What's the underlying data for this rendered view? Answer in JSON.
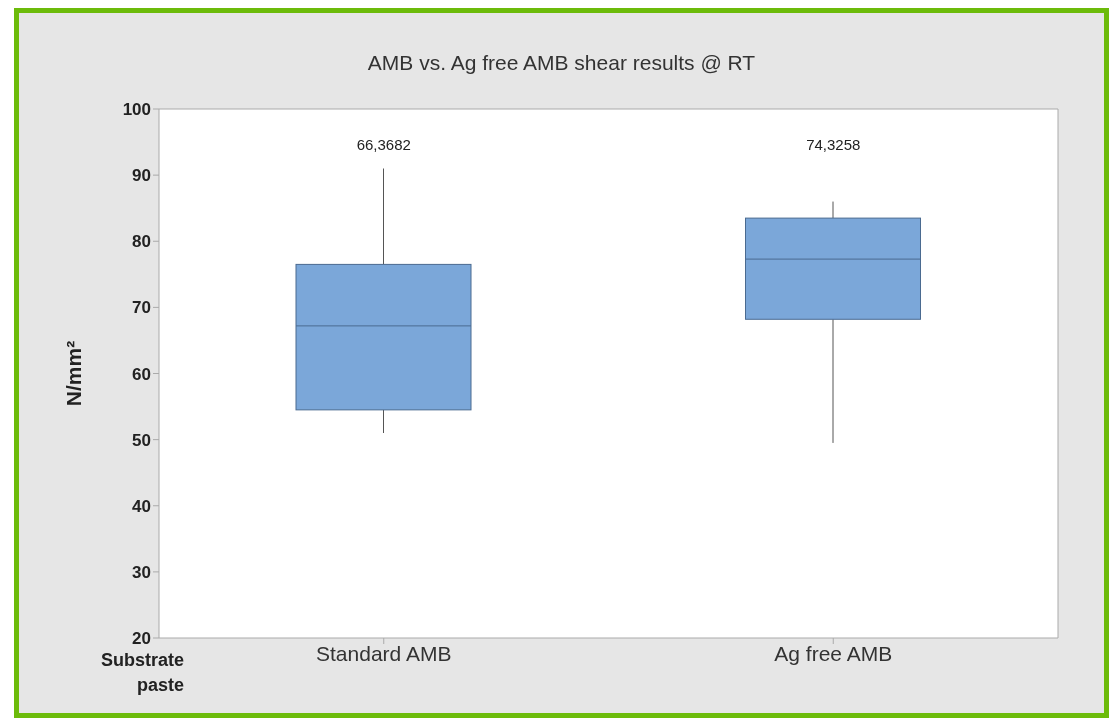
{
  "chart_data": {
    "type": "box",
    "title": "AMB vs. Ag free AMB shear results @ RT",
    "ylabel": "N/mm²",
    "categories": [
      "Standard AMB",
      "Ag free AMB"
    ],
    "series": [
      {
        "color": "#7ba7d9",
        "boxes": [
          {
            "low": 51,
            "q1": 54.5,
            "median": 67.2,
            "q3": 76.5,
            "high": 91
          },
          {
            "low": 49.5,
            "q1": 68.2,
            "median": 77.3,
            "q3": 83.5,
            "high": 86
          }
        ]
      }
    ],
    "ylim": [
      20,
      100
    ],
    "yticks": [
      20,
      30,
      40,
      50,
      60,
      70,
      80,
      90,
      100
    ],
    "annotations": [
      "66,3682",
      "74,3258",
      "Substrate",
      "paste"
    ]
  }
}
